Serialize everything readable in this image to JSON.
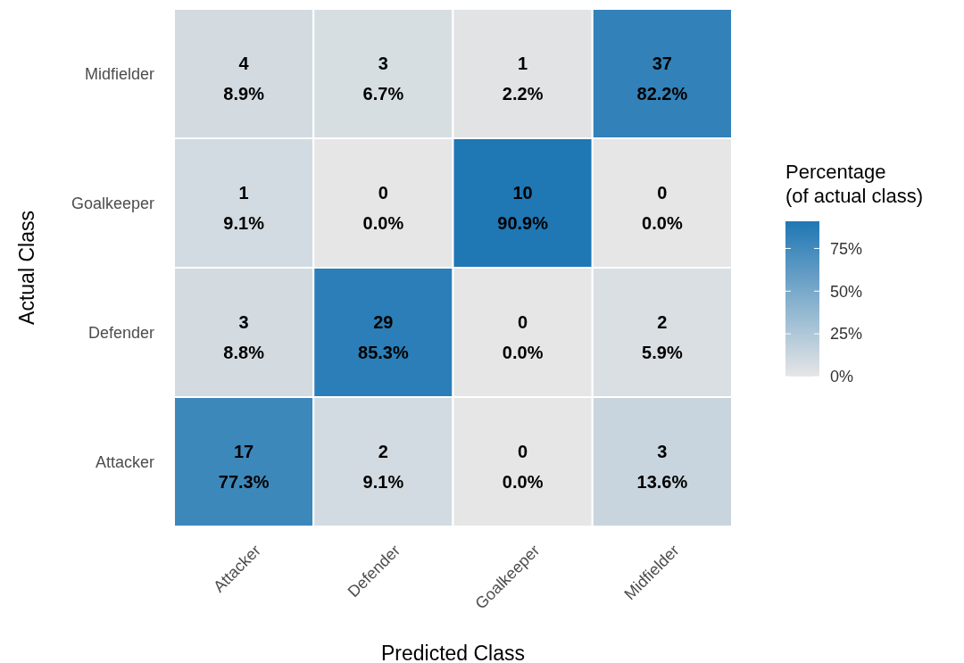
{
  "chart_data": {
    "type": "heatmap",
    "xlabel": "Predicted Class",
    "ylabel": "Actual Class",
    "clabel": "Percentage\n(of actual class)",
    "categories": [
      "Attacker",
      "Defender",
      "Goalkeeper",
      "Midfielder"
    ],
    "y_categories": [
      "Midfielder",
      "Goalkeeper",
      "Defender",
      "Attacker"
    ],
    "cells": [
      [
        8.9,
        6.7,
        2.2,
        82.2
      ],
      [
        9.1,
        0.0,
        90.9,
        0.0
      ],
      [
        8.8,
        85.3,
        0.0,
        5.9
      ],
      [
        77.3,
        9.1,
        0.0,
        13.6
      ]
    ],
    "cell_labels": [
      [
        "4\n8.9%",
        "3\n6.7%",
        "1\n2.2%",
        "37\n82.2%"
      ],
      [
        "1\n9.1%",
        "0\n0.0%",
        "10\n90.9%",
        "0\n0.0%"
      ],
      [
        "3\n8.8%",
        "29\n85.3%",
        "0\n0.0%",
        "2\n5.9%"
      ],
      [
        "17\n77.3%",
        "2\n9.1%",
        "0\n0.0%",
        "3\n13.6%"
      ]
    ],
    "clim": [
      0,
      90.9
    ],
    "cticks": [
      {
        "value": 0,
        "label": "0%"
      },
      {
        "value": 25,
        "label": "25%"
      },
      {
        "value": 50,
        "label": "50%"
      },
      {
        "value": 75,
        "label": "75%"
      }
    ]
  }
}
